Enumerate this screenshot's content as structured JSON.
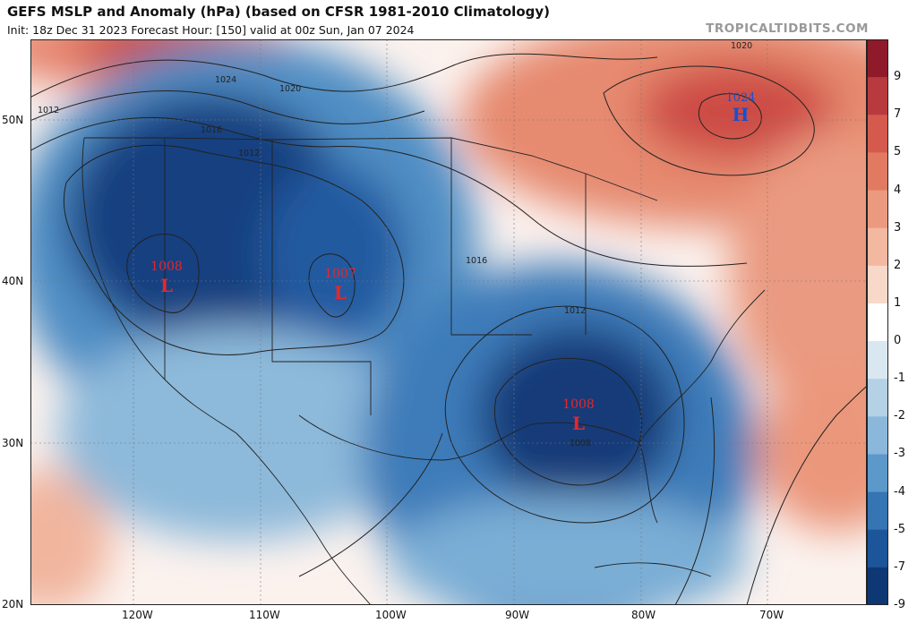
{
  "header": {
    "title": "GEFS MSLP and Anomaly (hPa) (based on CFSR 1981-2010 Climatology)",
    "subtitle": "Init: 18z Dec 31 2023   Forecast Hour: [150]   valid at 00z Sun, Jan 07 2024",
    "brand": "TROPICALTIDBITS.COM"
  },
  "axes": {
    "lon_labels": [
      "120W",
      "110W",
      "100W",
      "90W",
      "80W",
      "70W"
    ],
    "lat_labels": [
      "50N",
      "40N",
      "30N",
      "20N"
    ]
  },
  "colorbar": {
    "labels": [
      "9",
      "7",
      "5",
      "4",
      "3",
      "2",
      "1",
      "0",
      "-1",
      "-2",
      "-3",
      "-4",
      "-5",
      "-7",
      "-9"
    ],
    "colors": [
      "#8f1a2a",
      "#b93a3e",
      "#d55a4e",
      "#e27a62",
      "#eb9a80",
      "#f2b8a0",
      "#f8d8c8",
      "#ffffff",
      "#d9e7f1",
      "#b4d1e6",
      "#8bb8da",
      "#5c98c9",
      "#3575b3",
      "#1c559a",
      "#0d3873"
    ]
  },
  "pressure_centers": [
    {
      "value": "1008",
      "letter": "L",
      "kind": "low"
    },
    {
      "value": "1007",
      "letter": "L",
      "kind": "low"
    },
    {
      "value": "1008",
      "letter": "L",
      "kind": "low"
    },
    {
      "value": "1024",
      "letter": "H",
      "kind": "high"
    }
  ],
  "isobar_labels": [
    "1024",
    "1020",
    "1012",
    "1016",
    "1012",
    "1016",
    "1012",
    "1008",
    "1020"
  ],
  "colors": {
    "low_label": "#e8262b",
    "high_label": "#1e4fc8"
  }
}
